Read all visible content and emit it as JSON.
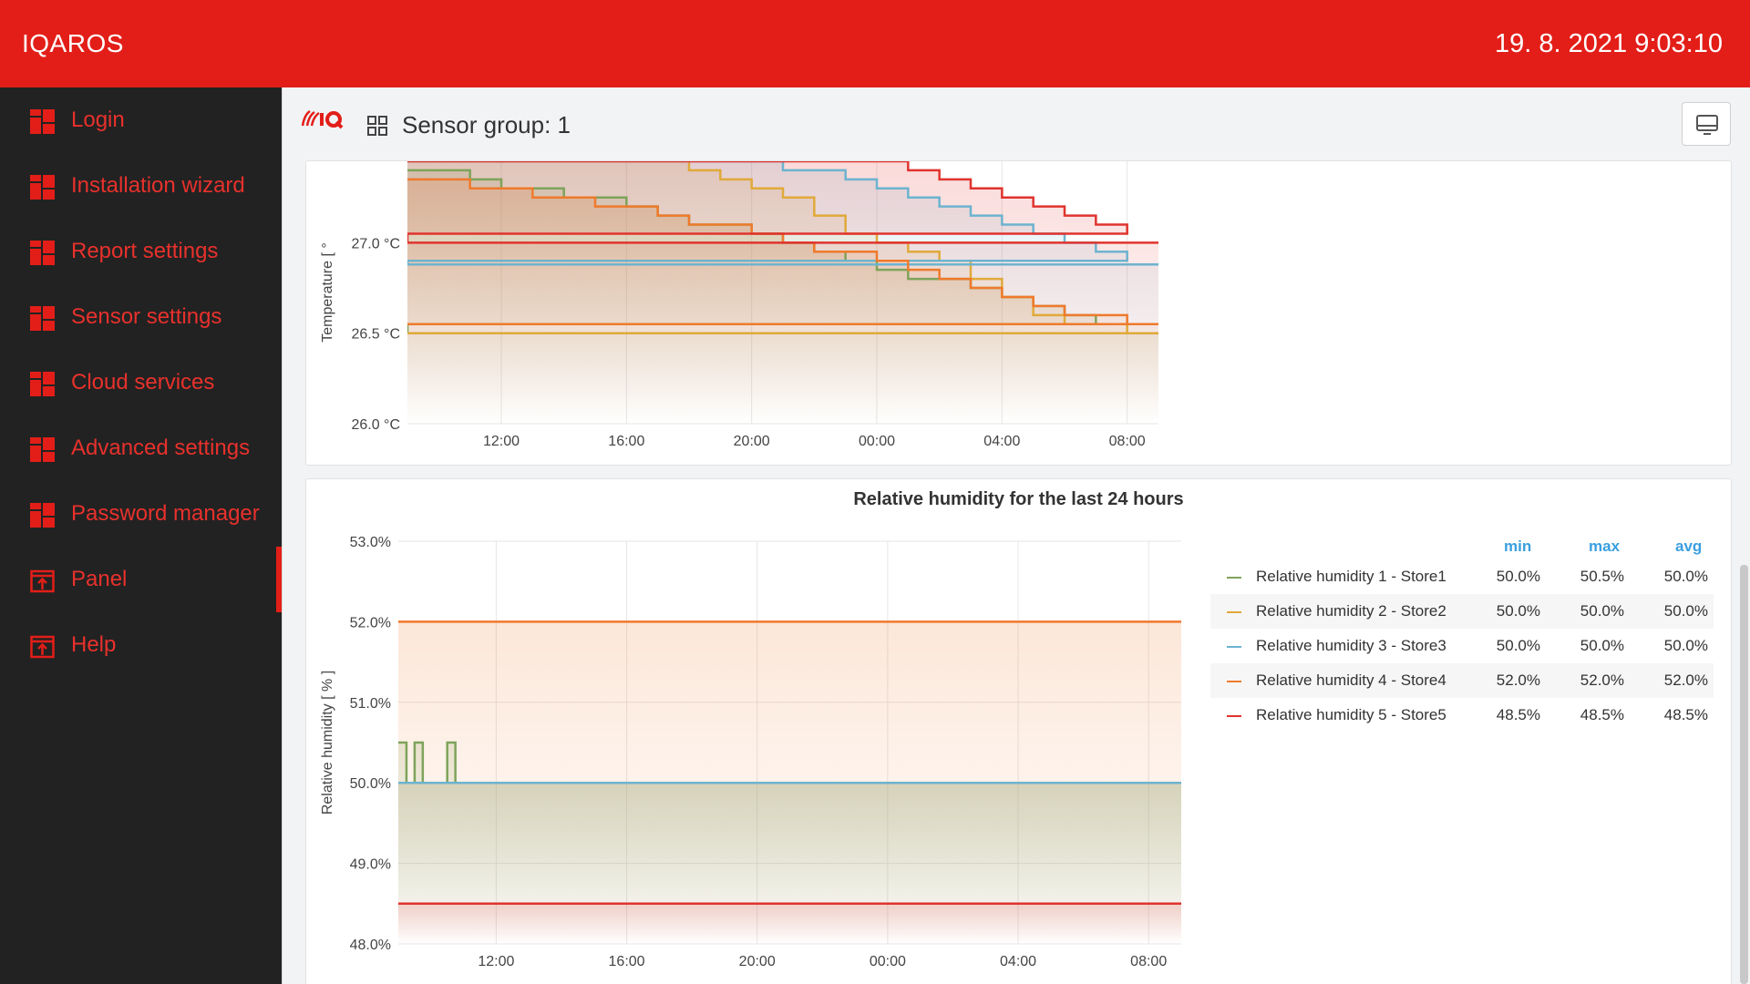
{
  "header": {
    "brand": "IQAROS",
    "datetime": "19. 8. 2021 9:03:10"
  },
  "sidebar": {
    "items": [
      {
        "label": "Login",
        "icon": "dashboard-icon"
      },
      {
        "label": "Installation wizard",
        "icon": "dashboard-icon"
      },
      {
        "label": "Report settings",
        "icon": "dashboard-icon"
      },
      {
        "label": "Sensor settings",
        "icon": "dashboard-icon"
      },
      {
        "label": "Cloud services",
        "icon": "dashboard-icon"
      },
      {
        "label": "Advanced settings",
        "icon": "dashboard-icon"
      },
      {
        "label": "Password manager",
        "icon": "dashboard-icon"
      },
      {
        "label": "Panel",
        "icon": "panel-icon",
        "active": true
      },
      {
        "label": "Help",
        "icon": "panel-icon"
      }
    ]
  },
  "page": {
    "title": "Sensor group: 1",
    "display_button_icon": "monitor-icon",
    "logo": "iq-logo"
  },
  "colors": {
    "header": "#e31e18",
    "sidebar": "#222222",
    "series1": "#7ea35a",
    "series2": "#e0a93a",
    "series3": "#6db3cf",
    "series4": "#ef7a2c",
    "series5": "#e0332e",
    "legend_header": "#3a9fe0"
  },
  "chart_data": [
    {
      "type": "line",
      "title": "",
      "ylabel": "Temperature [ °",
      "x_ticks": [
        "12:00",
        "16:00",
        "20:00",
        "00:00",
        "04:00",
        "08:00"
      ],
      "y_ticks": [
        "26.0 °C",
        "26.5 °C",
        "27.0 °C"
      ],
      "ylim": [
        26.0,
        27.45
      ],
      "x": [
        "09:00",
        "10:00",
        "11:00",
        "12:00",
        "13:00",
        "14:00",
        "15:00",
        "16:00",
        "17:00",
        "18:00",
        "19:00",
        "20:00",
        "21:00",
        "22:00",
        "23:00",
        "00:00",
        "01:00",
        "02:00",
        "03:00",
        "04:00",
        "05:00",
        "06:00",
        "07:00",
        "08:00",
        "09:00"
      ],
      "series": [
        {
          "values": [
            27.4,
            27.4,
            27.35,
            27.3,
            27.3,
            27.25,
            27.25,
            27.2,
            27.15,
            27.1,
            27.1,
            27.05,
            27.0,
            26.95,
            26.9,
            26.85,
            26.8,
            26.8,
            26.75,
            26.7,
            26.65,
            26.6,
            26.55,
            26.55,
            26.5
          ]
        },
        {
          "values": [
            27.45,
            27.45,
            27.45,
            27.45,
            27.45,
            27.45,
            27.45,
            27.45,
            27.45,
            27.4,
            27.35,
            27.3,
            27.25,
            27.15,
            27.05,
            27.0,
            26.95,
            26.9,
            26.8,
            26.7,
            26.6,
            26.55,
            26.55,
            26.5,
            26.5
          ]
        },
        {
          "values": [
            27.45,
            27.45,
            27.45,
            27.45,
            27.45,
            27.45,
            27.45,
            27.45,
            27.45,
            27.45,
            27.45,
            27.45,
            27.4,
            27.4,
            27.35,
            27.3,
            27.25,
            27.2,
            27.15,
            27.1,
            27.05,
            27.0,
            26.95,
            26.9,
            26.88
          ]
        },
        {
          "values": [
            27.35,
            27.35,
            27.3,
            27.3,
            27.25,
            27.25,
            27.2,
            27.2,
            27.15,
            27.1,
            27.1,
            27.05,
            27.0,
            26.95,
            26.95,
            26.9,
            26.85,
            26.8,
            26.75,
            26.7,
            26.65,
            26.6,
            26.6,
            26.55,
            26.55
          ]
        },
        {
          "values": [
            27.45,
            27.45,
            27.45,
            27.45,
            27.45,
            27.45,
            27.45,
            27.45,
            27.45,
            27.45,
            27.45,
            27.45,
            27.45,
            27.45,
            27.45,
            27.45,
            27.4,
            27.35,
            27.3,
            27.25,
            27.2,
            27.15,
            27.1,
            27.05,
            27.0
          ]
        }
      ]
    },
    {
      "type": "line",
      "title": "Relative humidity for the last 24 hours",
      "ylabel": "Relative humidity [ % ]",
      "x_ticks": [
        "12:00",
        "16:00",
        "20:00",
        "00:00",
        "04:00",
        "08:00"
      ],
      "y_ticks": [
        "48.0%",
        "49.0%",
        "50.0%",
        "51.0%",
        "52.0%",
        "53.0%"
      ],
      "ylim": [
        48.0,
        53.0
      ],
      "x": [
        "09:00",
        "09:15",
        "09:30",
        "09:45",
        "10:00",
        "10:15",
        "10:30",
        "10:45",
        "11:00",
        "12:00",
        "16:00",
        "20:00",
        "00:00",
        "04:00",
        "08:00",
        "09:00"
      ],
      "series": [
        {
          "name": "Relative humidity 1 - Store1",
          "values": [
            50.5,
            50.0,
            50.5,
            50.0,
            50.0,
            50.0,
            50.5,
            50.0,
            50.0,
            50.0,
            50.0,
            50.0,
            50.0,
            50.0,
            50.0,
            50.0
          ],
          "min": "50.0%",
          "max": "50.5%",
          "avg": "50.0%"
        },
        {
          "name": "Relative humidity 2 - Store2",
          "values": [
            50.0,
            50.0,
            50.0,
            50.0,
            50.0,
            50.0,
            50.0,
            50.0,
            50.0,
            50.0,
            50.0,
            50.0,
            50.0,
            50.0,
            50.0,
            50.0
          ],
          "min": "50.0%",
          "max": "50.0%",
          "avg": "50.0%"
        },
        {
          "name": "Relative humidity 3 - Store3",
          "values": [
            50.0,
            50.0,
            50.0,
            50.0,
            50.0,
            50.0,
            50.0,
            50.0,
            50.0,
            50.0,
            50.0,
            50.0,
            50.0,
            50.0,
            50.0,
            50.0
          ],
          "min": "50.0%",
          "max": "50.0%",
          "avg": "50.0%"
        },
        {
          "name": "Relative humidity 4 - Store4",
          "values": [
            52.0,
            52.0,
            52.0,
            52.0,
            52.0,
            52.0,
            52.0,
            52.0,
            52.0,
            52.0,
            52.0,
            52.0,
            52.0,
            52.0,
            52.0,
            52.0
          ],
          "min": "52.0%",
          "max": "52.0%",
          "avg": "52.0%"
        },
        {
          "name": "Relative humidity 5 - Store5",
          "values": [
            48.5,
            48.5,
            48.5,
            48.5,
            48.5,
            48.5,
            48.5,
            48.5,
            48.5,
            48.5,
            48.5,
            48.5,
            48.5,
            48.5,
            48.5,
            48.5
          ],
          "min": "48.5%",
          "max": "48.5%",
          "avg": "48.5%"
        }
      ],
      "legend": {
        "headers": [
          "min",
          "max",
          "avg"
        ],
        "placement": "right"
      }
    }
  ]
}
